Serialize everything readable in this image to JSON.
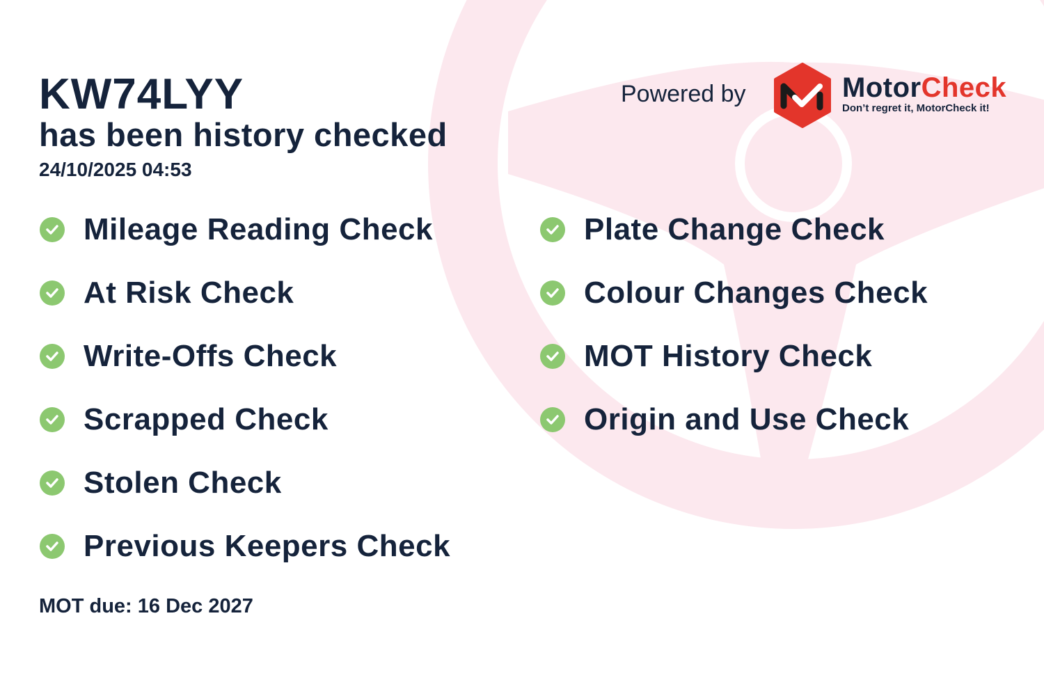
{
  "vehicle": {
    "plate": "KW74LYY",
    "status": "has been history checked",
    "timestamp": "24/10/2025 04:53"
  },
  "branding": {
    "powered_by": "Powered by",
    "name_part1": "Motor",
    "name_part2": "Check",
    "tagline": "Don’t regret it, MotorCheck it!",
    "brand_color": "#e3352b"
  },
  "checks_left": [
    {
      "label": "Mileage Reading Check",
      "status": "passed"
    },
    {
      "label": "At Risk Check",
      "status": "passed"
    },
    {
      "label": "Write-Offs Check",
      "status": "passed"
    },
    {
      "label": "Scrapped Check",
      "status": "passed"
    },
    {
      "label": "Stolen Check",
      "status": "passed"
    },
    {
      "label": "Previous Keepers Check",
      "status": "passed"
    }
  ],
  "checks_right": [
    {
      "label": "Plate Change Check",
      "status": "passed"
    },
    {
      "label": "Colour Changes Check",
      "status": "passed"
    },
    {
      "label": "MOT History Check",
      "status": "passed"
    },
    {
      "label": "Origin and Use Check",
      "status": "passed"
    }
  ],
  "mot_due": "MOT due: 16 Dec 2027",
  "colors": {
    "text": "#15233b",
    "check": "#8cc870",
    "watermark": "#fce8ee"
  }
}
